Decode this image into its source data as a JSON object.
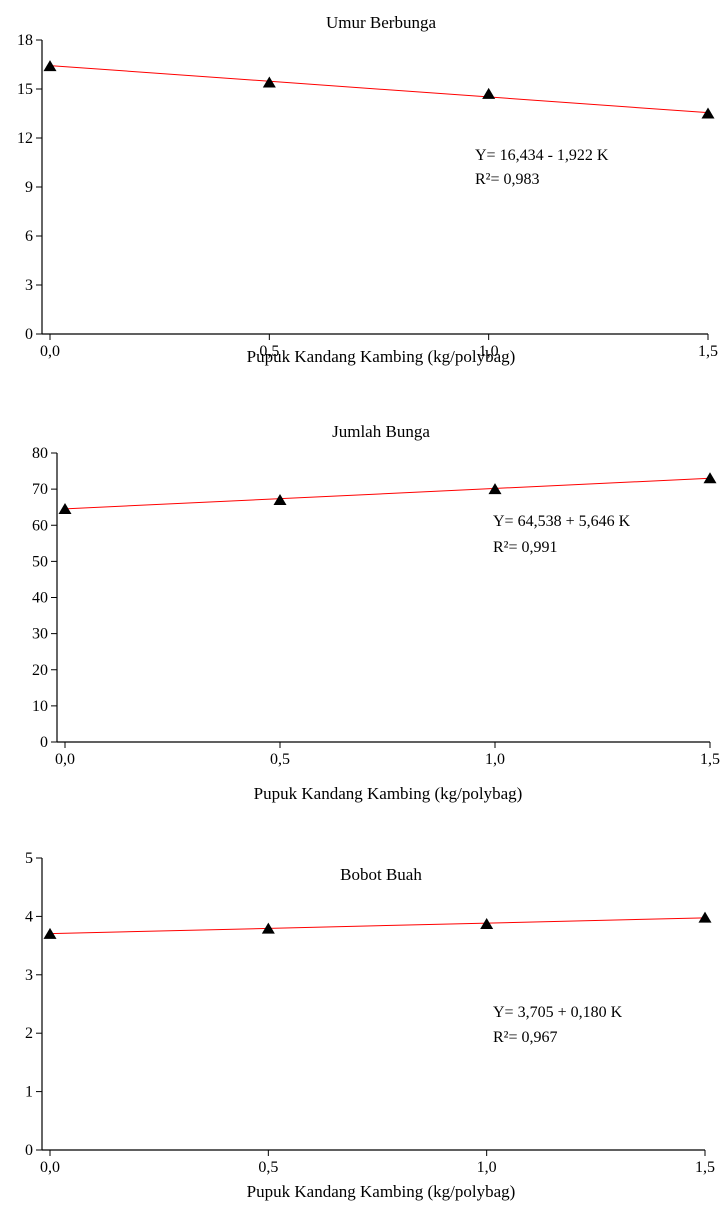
{
  "chart_data": [
    {
      "type": "scatter",
      "title": "Umur Berbunga",
      "xlabel": "Pupuk Kandang Kambing (kg/polybag)",
      "ylabel": "",
      "x": [
        0.0,
        0.5,
        1.0,
        1.5
      ],
      "x_tick_labels": [
        "0,0",
        "0,5",
        "1,0",
        "1,5"
      ],
      "xlim": [
        0,
        1.5
      ],
      "ylim": [
        0,
        18
      ],
      "y_ticks": [
        0,
        3,
        6,
        9,
        12,
        15,
        18
      ],
      "y_tick_labels": [
        "0",
        "3",
        "6",
        "9",
        "12",
        "15",
        "18"
      ],
      "series": [
        {
          "values": [
            16.4,
            15.4,
            14.7,
            13.5
          ],
          "marker": "triangle",
          "color": "#000000"
        }
      ],
      "regression": {
        "intercept": 16.434,
        "slope": -1.922,
        "color": "#ff0000"
      },
      "equation": "Y= 16,434 - 1,922 K",
      "r2_label": "R²= 0,983",
      "grid": false
    },
    {
      "type": "scatter",
      "title": "Jumlah Bunga",
      "xlabel": "Pupuk Kandang Kambing (kg/polybag)",
      "ylabel": "",
      "x": [
        0.0,
        0.5,
        1.0,
        1.5
      ],
      "x_tick_labels": [
        "0,0",
        "0,5",
        "1,0",
        "1,5"
      ],
      "xlim": [
        0,
        1.5
      ],
      "ylim": [
        0,
        80
      ],
      "y_ticks": [
        0,
        10,
        20,
        30,
        40,
        50,
        60,
        70,
        80
      ],
      "y_tick_labels": [
        "0",
        "10",
        "20",
        "30",
        "40",
        "50",
        "60",
        "70",
        "80"
      ],
      "series": [
        {
          "values": [
            64.5,
            67.0,
            70.0,
            73.0
          ],
          "marker": "triangle",
          "color": "#000000"
        }
      ],
      "regression": {
        "intercept": 64.538,
        "slope": 5.646,
        "color": "#ff0000"
      },
      "equation": "Y= 64,538 + 5,646 K",
      "r2_label": "R²= 0,991",
      "grid": false
    },
    {
      "type": "scatter",
      "title": "Bobot Buah",
      "xlabel": "Pupuk Kandang Kambing (kg/polybag)",
      "ylabel": "",
      "x": [
        0.0,
        0.5,
        1.0,
        1.5
      ],
      "x_tick_labels": [
        "0,0",
        "0,5",
        "1,0",
        "1,5"
      ],
      "xlim": [
        0,
        1.5
      ],
      "ylim": [
        0,
        5
      ],
      "y_ticks": [
        0,
        1,
        2,
        3,
        4,
        5
      ],
      "y_tick_labels": [
        "0",
        "1",
        "2",
        "3",
        "4",
        "5"
      ],
      "series": [
        {
          "values": [
            3.7,
            3.79,
            3.87,
            3.98
          ],
          "marker": "triangle",
          "color": "#000000"
        }
      ],
      "regression": {
        "intercept": 3.705,
        "slope": 0.18,
        "color": "#ff0000"
      },
      "equation": "Y= 3,705 + 0,180 K",
      "r2_label": "R²= 0,967",
      "grid": false
    }
  ]
}
